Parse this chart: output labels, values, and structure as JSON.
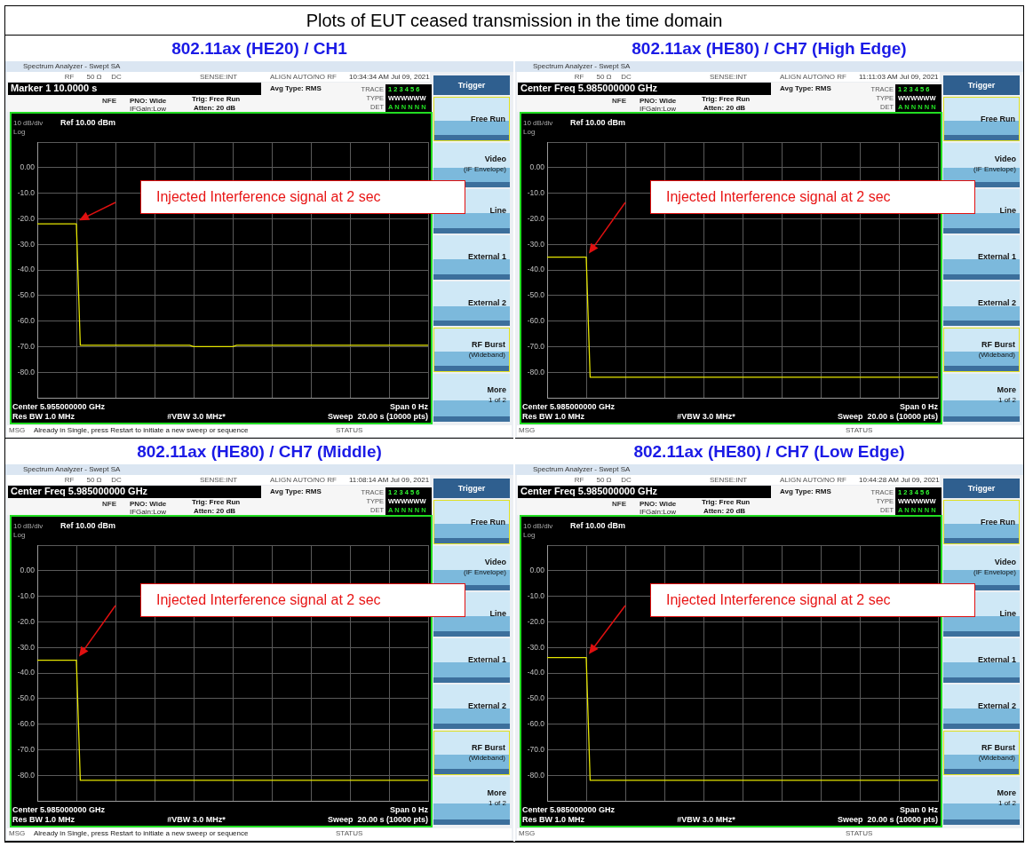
{
  "chart_data": [
    {
      "type": "other",
      "title": "Plots of EUT ceased transmission in the time domain"
    },
    {
      "type": "line",
      "title": "802.11ax (HE20) / CH1",
      "marker": "none",
      "line_style": "solid",
      "grid": true,
      "tick_labels": "y",
      "categories": [
        null,
        null,
        null,
        null,
        null,
        null,
        null,
        null,
        null,
        null,
        null,
        null,
        null,
        null,
        null,
        null,
        null,
        null,
        null,
        null,
        null,
        null,
        null,
        null,
        null,
        null,
        null,
        null,
        null,
        null,
        null,
        null,
        null,
        null,
        null,
        null,
        null,
        null,
        null,
        null,
        null,
        null,
        null,
        null,
        null,
        null,
        null,
        null,
        null,
        null,
        null,
        null,
        null,
        null,
        null,
        null,
        null,
        null,
        null,
        null,
        null,
        null,
        null,
        null,
        null,
        null,
        null,
        null,
        null,
        null,
        null,
        null,
        null,
        null,
        null,
        null,
        null,
        null,
        null,
        null,
        null,
        null,
        null,
        null,
        null,
        null,
        null,
        null,
        null,
        null,
        null,
        null,
        null,
        null,
        null,
        null,
        null,
        null,
        null,
        null,
        null
      ],
      "series": [
        {
          "color": "#e6e600",
          "values": [
            -22,
            -22,
            -22,
            -22,
            -22,
            -22,
            -22,
            -22,
            -22,
            -22,
            -22,
            -69.5,
            -69.5,
            -69.5,
            -69.5,
            -69.5,
            -69.5,
            -69.5,
            -69.5,
            -69.5,
            -69.5,
            -69.5,
            -69.5,
            -69.5,
            -69.5,
            -69.5,
            -69.5,
            -69.5,
            -69.5,
            -69.5,
            -69.5,
            -69.5,
            -69.5,
            -69.5,
            -69.5,
            -69.5,
            -69.5,
            -69.5,
            -69.5,
            -69.5,
            -70,
            -70,
            -70,
            -70,
            -70,
            -70,
            -70,
            -70,
            -70,
            -70,
            -70,
            -69.5,
            -69.5,
            -69.5,
            -69.5,
            -69.5,
            -69.5,
            -69.5,
            -69.5,
            -69.5,
            -69.5,
            -69.5,
            -69.5,
            -69.5,
            -69.5,
            -69.5,
            -69.5,
            -69.5,
            -69.5,
            -69.5,
            -69.5,
            -69.5,
            -69.5,
            -69.5,
            -69.5,
            -69.5,
            -69.5,
            -69.5,
            -69.5,
            -69.5,
            -69.5,
            -69.5,
            -69.5,
            -69.5,
            -69.5,
            -69.5,
            -69.5,
            -69.5,
            -69.5,
            -69.5,
            -69.5,
            -69.5,
            -69.5,
            -69.5,
            -69.5,
            -69.5,
            -69.5,
            -69.5,
            -69.5,
            -69.5,
            -69.5
          ]
        }
      ],
      "ylim": [
        -90,
        10
      ],
      "yticks": [
        {
          "value": 10,
          "label": null
        },
        {
          "value": 0,
          "label": "0.00"
        },
        {
          "value": -10,
          "label": "-10.0"
        },
        {
          "value": -20,
          "label": "-20.0"
        },
        {
          "value": -30,
          "label": "-30.0"
        },
        {
          "value": -40,
          "label": "-40.0"
        },
        {
          "value": -50,
          "label": "-50.0"
        },
        {
          "value": -60,
          "label": "-60.0"
        },
        {
          "value": -70,
          "label": "-70.0"
        },
        {
          "value": -80,
          "label": "-80.0"
        },
        {
          "value": -90,
          "label": null
        }
      ],
      "annotations": [
        "Spectrum Analyzer - Swept SA",
        "RF",
        "50 Ω",
        "DC",
        "SENSE:INT",
        "ALIGN AUTO/NO RF",
        "10:34:34 AM Jul 09, 2021",
        "Marker 1 10.0000 s",
        "NFE",
        "PNO: Wide",
        "IFGain:Low",
        "Trig: Free Run",
        "Atten: 20 dB",
        "Avg Type: RMS",
        "TRACE",
        "1 2 3 4 5 6",
        "TYPE",
        "WWWWWW",
        "DET",
        "A N N N N N",
        "10 dB/div",
        "Ref 10.00 dBm",
        "Log",
        "Center 5.955000000 GHz",
        "Res BW 1.0 MHz",
        "#VBW 3.0 MHz*",
        "Span 0 Hz",
        "Sweep  20.00 s (10000 pts)",
        "MSG",
        "Trigger",
        "Free Run",
        "Video",
        "(IF Envelope)",
        "Line",
        "External 1",
        "External 2",
        "RF Burst",
        "(Wideband)",
        "More",
        "1 of 2",
        "STATUS",
        "Injected Interference signal at 2 sec",
        "Already in Single, press Restart to initiate a new sweep or sequence"
      ]
    },
    {
      "type": "line",
      "title": "802.11ax (HE80) / CH7 (High Edge)",
      "marker": "none",
      "line_style": "solid",
      "grid": true,
      "tick_labels": "y",
      "categories": [
        null,
        null,
        null,
        null,
        null,
        null,
        null,
        null,
        null,
        null,
        null,
        null,
        null,
        null,
        null,
        null,
        null,
        null,
        null,
        null,
        null,
        null,
        null,
        null,
        null,
        null,
        null,
        null,
        null,
        null,
        null,
        null,
        null,
        null,
        null,
        null,
        null,
        null,
        null,
        null,
        null,
        null,
        null,
        null,
        null,
        null,
        null,
        null,
        null,
        null,
        null,
        null,
        null,
        null,
        null,
        null,
        null,
        null,
        null,
        null,
        null,
        null,
        null,
        null,
        null,
        null,
        null,
        null,
        null,
        null,
        null,
        null,
        null,
        null,
        null,
        null,
        null,
        null,
        null,
        null,
        null,
        null,
        null,
        null,
        null,
        null,
        null,
        null,
        null,
        null,
        null,
        null,
        null,
        null,
        null,
        null,
        null,
        null,
        null,
        null,
        null
      ],
      "series": [
        {
          "color": "#e6e600",
          "values": [
            -35,
            -35,
            -35,
            -35,
            -35,
            -35,
            -35,
            -35,
            -35,
            -35,
            -35,
            -82,
            -82,
            -82,
            -82,
            -82,
            -82,
            -82,
            -82,
            -82,
            -82,
            -82,
            -82,
            -82,
            -82,
            -82,
            -82,
            -82,
            -82,
            -82,
            -82,
            -82,
            -82,
            -82,
            -82,
            -82,
            -82,
            -82,
            -82,
            -82,
            -82,
            -82,
            -82,
            -82,
            -82,
            -82,
            -82,
            -82,
            -82,
            -82,
            -82,
            -82,
            -82,
            -82,
            -82,
            -82,
            -82,
            -82,
            -82,
            -82,
            -82,
            -82,
            -82,
            -82,
            -82,
            -82,
            -82,
            -82,
            -82,
            -82,
            -82,
            -82,
            -82,
            -82,
            -82,
            -82,
            -82,
            -82,
            -82,
            -82,
            -82,
            -82,
            -82,
            -82,
            -82,
            -82,
            -82,
            -82,
            -82,
            -82,
            -82,
            -82,
            -82,
            -82,
            -82,
            -82,
            -82,
            -82,
            -82,
            -82,
            -82
          ]
        }
      ],
      "ylim": [
        -90,
        10
      ],
      "yticks": [
        {
          "value": 10,
          "label": null
        },
        {
          "value": 0,
          "label": "0.00"
        },
        {
          "value": -10,
          "label": "-10.0"
        },
        {
          "value": -20,
          "label": "-20.0"
        },
        {
          "value": -30,
          "label": "-30.0"
        },
        {
          "value": -40,
          "label": "-40.0"
        },
        {
          "value": -50,
          "label": "-50.0"
        },
        {
          "value": -60,
          "label": "-60.0"
        },
        {
          "value": -70,
          "label": "-70.0"
        },
        {
          "value": -80,
          "label": "-80.0"
        },
        {
          "value": -90,
          "label": null
        }
      ],
      "annotations": [
        "Spectrum Analyzer - Swept SA",
        "RF",
        "50 Ω",
        "DC",
        "SENSE:INT",
        "ALIGN AUTO/NO RF",
        "11:11:03 AM Jul 09, 2021",
        "Center Freq 5.985000000 GHz",
        "NFE",
        "PNO: Wide",
        "IFGain:Low",
        "Trig: Free Run",
        "Atten: 20 dB",
        "Avg Type: RMS",
        "TRACE",
        "1 2 3 4 5 6",
        "TYPE",
        "WWWWWW",
        "DET",
        "A N N N N N",
        "10 dB/div",
        "Ref 10.00 dBm",
        "Log",
        "Center 5.985000000 GHz",
        "Res BW 1.0 MHz",
        "#VBW 3.0 MHz*",
        "Span 0 Hz",
        "Sweep  20.00 s (10000 pts)",
        "MSG",
        "Trigger",
        "Free Run",
        "Video",
        "(IF Envelope)",
        "Line",
        "External 1",
        "External 2",
        "RF Burst",
        "(Wideband)",
        "More",
        "1 of 2",
        "STATUS",
        "Injected Interference signal at 2 sec"
      ]
    },
    {
      "type": "line",
      "title": "802.11ax (HE80) / CH7 (Middle)",
      "marker": "none",
      "line_style": "solid",
      "grid": true,
      "tick_labels": "y",
      "categories": [
        null,
        null,
        null,
        null,
        null,
        null,
        null,
        null,
        null,
        null,
        null,
        null,
        null,
        null,
        null,
        null,
        null,
        null,
        null,
        null,
        null,
        null,
        null,
        null,
        null,
        null,
        null,
        null,
        null,
        null,
        null,
        null,
        null,
        null,
        null,
        null,
        null,
        null,
        null,
        null,
        null,
        null,
        null,
        null,
        null,
        null,
        null,
        null,
        null,
        null,
        null,
        null,
        null,
        null,
        null,
        null,
        null,
        null,
        null,
        null,
        null,
        null,
        null,
        null,
        null,
        null,
        null,
        null,
        null,
        null,
        null,
        null,
        null,
        null,
        null,
        null,
        null,
        null,
        null,
        null,
        null,
        null,
        null,
        null,
        null,
        null,
        null,
        null,
        null,
        null,
        null,
        null,
        null,
        null,
        null,
        null,
        null,
        null,
        null,
        null,
        null
      ],
      "series": [
        {
          "color": "#e6e600",
          "values": [
            -35,
            -35,
            -35,
            -35,
            -35,
            -35,
            -35,
            -35,
            -35,
            -35,
            -35,
            -82,
            -82,
            -82,
            -82,
            -82,
            -82,
            -82,
            -82,
            -82,
            -82,
            -82,
            -82,
            -82,
            -82,
            -82,
            -82,
            -82,
            -82,
            -82,
            -82,
            -82,
            -82,
            -82,
            -82,
            -82,
            -82,
            -82,
            -82,
            -82,
            -82,
            -82,
            -82,
            -82,
            -82,
            -82,
            -82,
            -82,
            -82,
            -82,
            -82,
            -82,
            -82,
            -82,
            -82,
            -82,
            -82,
            -82,
            -82,
            -82,
            -82,
            -82,
            -82,
            -82,
            -82,
            -82,
            -82,
            -82,
            -82,
            -82,
            -82,
            -82,
            -82,
            -82,
            -82,
            -82,
            -82,
            -82,
            -82,
            -82,
            -82,
            -82,
            -82,
            -82,
            -82,
            -82,
            -82,
            -82,
            -82,
            -82,
            -82,
            -82,
            -82,
            -82,
            -82,
            -82,
            -82,
            -82,
            -82,
            -82,
            -82
          ]
        }
      ],
      "ylim": [
        -90,
        10
      ],
      "yticks": [
        {
          "value": 10,
          "label": null
        },
        {
          "value": 0,
          "label": "0.00"
        },
        {
          "value": -10,
          "label": "-10.0"
        },
        {
          "value": -20,
          "label": "-20.0"
        },
        {
          "value": -30,
          "label": "-30.0"
        },
        {
          "value": -40,
          "label": "-40.0"
        },
        {
          "value": -50,
          "label": "-50.0"
        },
        {
          "value": -60,
          "label": "-60.0"
        },
        {
          "value": -70,
          "label": "-70.0"
        },
        {
          "value": -80,
          "label": "-80.0"
        },
        {
          "value": -90,
          "label": null
        }
      ],
      "annotations": [
        "Spectrum Analyzer - Swept SA",
        "RF",
        "50 Ω",
        "DC",
        "SENSE:INT",
        "ALIGN AUTO/NO RF",
        "11:08:14 AM Jul 09, 2021",
        "Center Freq 5.985000000 GHz",
        "NFE",
        "PNO: Wide",
        "IFGain:Low",
        "Trig: Free Run",
        "Atten: 20 dB",
        "Avg Type: RMS",
        "TRACE",
        "1 2 3 4 5 6",
        "TYPE",
        "WWWWWW",
        "DET",
        "A N N N N N",
        "10 dB/div",
        "Ref 10.00 dBm",
        "Log",
        "Center 5.985000000 GHz",
        "Res BW 1.0 MHz",
        "#VBW 3.0 MHz*",
        "Span 0 Hz",
        "Sweep  20.00 s (10000 pts)",
        "MSG",
        "Trigger",
        "Free Run",
        "Video",
        "(IF Envelope)",
        "Line",
        "External 1",
        "External 2",
        "RF Burst",
        "(Wideband)",
        "More",
        "1 of 2",
        "STATUS",
        "Injected Interference signal at 2 sec",
        "Already in Single, press Restart to initiate a new sweep or sequence"
      ]
    },
    {
      "type": "line",
      "title": "802.11ax (HE80) / CH7 (Low Edge)",
      "marker": "none",
      "line_style": "solid",
      "grid": true,
      "tick_labels": "y",
      "categories": [
        null,
        null,
        null,
        null,
        null,
        null,
        null,
        null,
        null,
        null,
        null,
        null,
        null,
        null,
        null,
        null,
        null,
        null,
        null,
        null,
        null,
        null,
        null,
        null,
        null,
        null,
        null,
        null,
        null,
        null,
        null,
        null,
        null,
        null,
        null,
        null,
        null,
        null,
        null,
        null,
        null,
        null,
        null,
        null,
        null,
        null,
        null,
        null,
        null,
        null,
        null,
        null,
        null,
        null,
        null,
        null,
        null,
        null,
        null,
        null,
        null,
        null,
        null,
        null,
        null,
        null,
        null,
        null,
        null,
        null,
        null,
        null,
        null,
        null,
        null,
        null,
        null,
        null,
        null,
        null,
        null,
        null,
        null,
        null,
        null,
        null,
        null,
        null,
        null,
        null,
        null,
        null,
        null,
        null,
        null,
        null,
        null,
        null,
        null,
        null,
        null
      ],
      "series": [
        {
          "color": "#e6e600",
          "values": [
            -34,
            -34,
            -34,
            -34,
            -34,
            -34,
            -34,
            -34,
            -34,
            -34,
            -34,
            -82,
            -82,
            -82,
            -82,
            -82,
            -82,
            -82,
            -82,
            -82,
            -82,
            -82,
            -82,
            -82,
            -82,
            -82,
            -82,
            -82,
            -82,
            -82,
            -82,
            -82,
            -82,
            -82,
            -82,
            -82,
            -82,
            -82,
            -82,
            -82,
            -82,
            -82,
            -82,
            -82,
            -82,
            -82,
            -82,
            -82,
            -82,
            -82,
            -82,
            -82,
            -82,
            -82,
            -82,
            -82,
            -82,
            -82,
            -82,
            -82,
            -82,
            -82,
            -82,
            -82,
            -82,
            -82,
            -82,
            -82,
            -82,
            -82,
            -82,
            -82,
            -82,
            -82,
            -82,
            -82,
            -82,
            -82,
            -82,
            -82,
            -82,
            -82,
            -82,
            -82,
            -82,
            -82,
            -82,
            -82,
            -82,
            -82,
            -82,
            -82,
            -82,
            -82,
            -82,
            -82,
            -82,
            -82,
            -82,
            -82,
            -82
          ]
        }
      ],
      "ylim": [
        -90,
        10
      ],
      "yticks": [
        {
          "value": 10,
          "label": null
        },
        {
          "value": 0,
          "label": "0.00"
        },
        {
          "value": -10,
          "label": "-10.0"
        },
        {
          "value": -20,
          "label": "-20.0"
        },
        {
          "value": -30,
          "label": "-30.0"
        },
        {
          "value": -40,
          "label": "-40.0"
        },
        {
          "value": -50,
          "label": "-50.0"
        },
        {
          "value": -60,
          "label": "-60.0"
        },
        {
          "value": -70,
          "label": "-70.0"
        },
        {
          "value": -80,
          "label": "-80.0"
        },
        {
          "value": -90,
          "label": null
        }
      ],
      "annotations": [
        "Spectrum Analyzer - Swept SA",
        "RF",
        "50 Ω",
        "DC",
        "SENSE:INT",
        "ALIGN AUTO/NO RF",
        "10:44:28 AM Jul 09, 2021",
        "Center Freq 5.985000000 GHz",
        "NFE",
        "PNO: Wide",
        "IFGain:Low",
        "Trig: Free Run",
        "Atten: 20 dB",
        "Avg Type: RMS",
        "TRACE",
        "1 2 3 4 5 6",
        "TYPE",
        "WWWWWW",
        "DET",
        "A N N N N N",
        "10 dB/div",
        "Ref 10.00 dBm",
        "Log",
        "Center 5.985000000 GHz",
        "Res BW 1.0 MHz",
        "#VBW 3.0 MHz*",
        "Span 0 Hz",
        "Sweep  20.00 s (10000 pts)",
        "MSG",
        "Trigger",
        "Free Run",
        "Video",
        "(IF Envelope)",
        "Line",
        "External 1",
        "External 2",
        "RF Burst",
        "(Wideband)",
        "More",
        "1 of 2",
        "STATUS",
        "Injected Interference signal at 2 sec"
      ]
    }
  ]
}
